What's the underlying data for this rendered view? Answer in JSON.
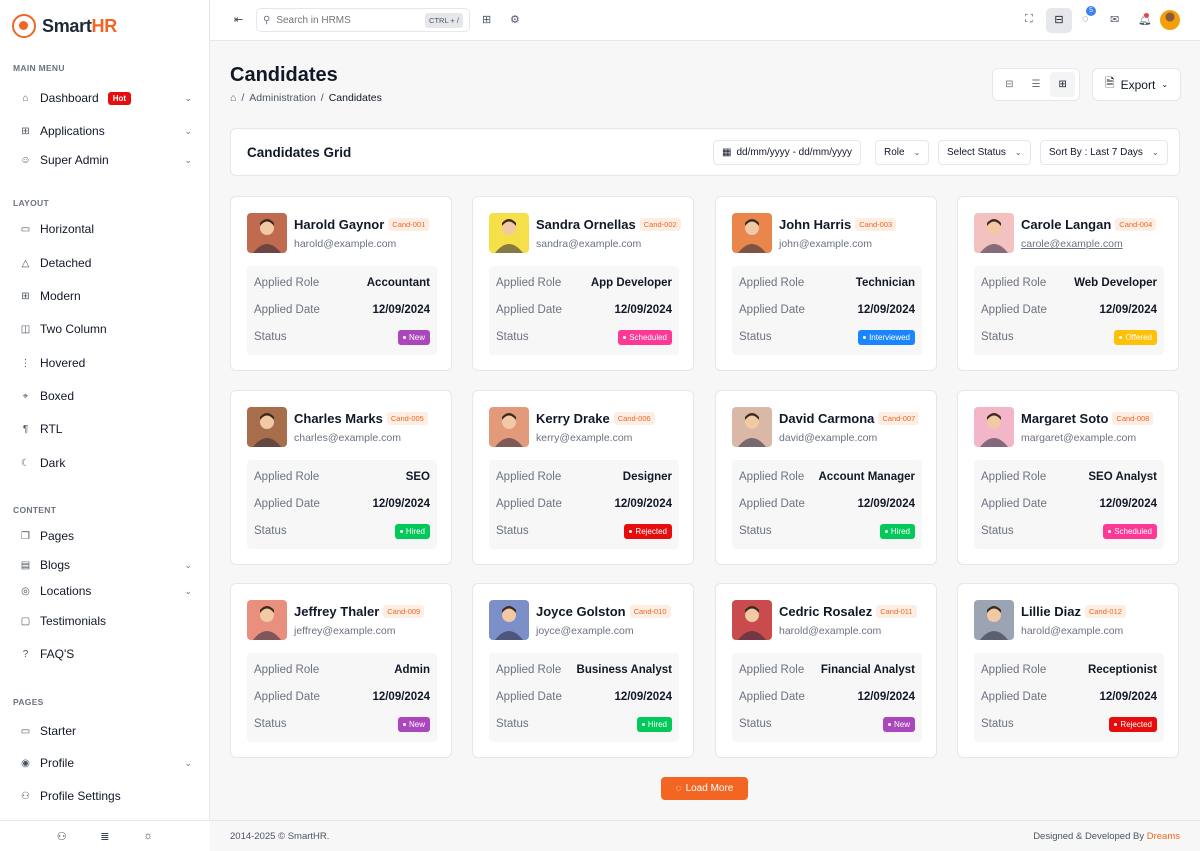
{
  "brand": {
    "name_a": "Smart",
    "name_b": "HR",
    "accent": "#f26522"
  },
  "sidebar": {
    "sections": [
      {
        "title": "MAIN MENU"
      },
      {
        "title": "LAYOUT"
      },
      {
        "title": "CONTENT"
      },
      {
        "title": "PAGES"
      }
    ],
    "main": [
      {
        "label": "Dashboard",
        "badge": "Hot",
        "icon": "home-icon"
      },
      {
        "label": "Applications",
        "icon": "apps-icon"
      },
      {
        "label": "Super Admin",
        "icon": "user-star-icon"
      }
    ],
    "layout": [
      {
        "label": "Horizontal",
        "icon": "layout-icon"
      },
      {
        "label": "Detached",
        "icon": "triangle-icon"
      },
      {
        "label": "Modern",
        "icon": "grid-icon"
      },
      {
        "label": "Two Column",
        "icon": "columns-icon"
      },
      {
        "label": "Hovered",
        "icon": "hover-icon"
      },
      {
        "label": "Boxed",
        "icon": "box-icon"
      },
      {
        "label": "RTL",
        "icon": "rtl-icon"
      },
      {
        "label": "Dark",
        "icon": "moon-icon"
      }
    ],
    "content": [
      {
        "label": "Pages",
        "icon": "pages-icon"
      },
      {
        "label": "Blogs",
        "icon": "blog-icon"
      },
      {
        "label": "Locations",
        "icon": "location-icon"
      },
      {
        "label": "Testimonials",
        "icon": "message-icon"
      },
      {
        "label": "FAQ'S",
        "icon": "question-icon"
      }
    ],
    "pages": [
      {
        "label": "Starter",
        "icon": "layout-icon"
      },
      {
        "label": "Profile",
        "icon": "user-circle-icon"
      },
      {
        "label": "Profile Settings",
        "icon": "user-cog-icon"
      }
    ]
  },
  "topbar": {
    "search_placeholder": "Search in HRMS",
    "shortcut": "CTRL + /",
    "chat_count": "5"
  },
  "page": {
    "title": "Candidates",
    "breadcrumb": [
      "Administration",
      "Candidates"
    ],
    "export": "Export",
    "grid_title": "Candidates Grid",
    "filters": {
      "date": "dd/mm/yyyy - dd/mm/yyyy",
      "role": "Role",
      "status": "Select Status",
      "sort": "Sort By : Last 7 Days"
    }
  },
  "labels": {
    "role": "Applied Role",
    "date": "Applied Date",
    "status": "Status"
  },
  "candidates": [
    {
      "name": "Harold Gaynor",
      "id": "Cand-001",
      "email": "harold@example.com",
      "role": "Accountant",
      "date": "12/09/2024",
      "status": "New"
    },
    {
      "name": "Sandra Ornellas",
      "id": "Cand-002",
      "email": "sandra@example.com",
      "role": "App Developer",
      "date": "12/09/2024",
      "status": "Scheduled"
    },
    {
      "name": "John Harris",
      "id": "Cand-003",
      "email": "john@example.com",
      "role": "Technician",
      "date": "12/09/2024",
      "status": "Interviewed"
    },
    {
      "name": "Carole Langan",
      "id": "Cand-004",
      "email": "carole@example.com",
      "role": "Web Developer",
      "date": "12/09/2024",
      "status": "Offered"
    },
    {
      "name": "Charles Marks",
      "id": "Cand-005",
      "email": "charles@example.com",
      "role": "SEO",
      "date": "12/09/2024",
      "status": "Hired"
    },
    {
      "name": "Kerry Drake",
      "id": "Cand-006",
      "email": "kerry@example.com",
      "role": "Designer",
      "date": "12/09/2024",
      "status": "Rejected"
    },
    {
      "name": "David Carmona",
      "id": "Cand-007",
      "email": "david@example.com",
      "role": "Account Manager",
      "date": "12/09/2024",
      "status": "Hired"
    },
    {
      "name": "Margaret Soto",
      "id": "Cand-008",
      "email": "margaret@example.com",
      "role": "SEO Analyst",
      "date": "12/09/2024",
      "status": "Scheduled"
    },
    {
      "name": "Jeffrey Thaler",
      "id": "Cand-009",
      "email": "jeffrey@example.com",
      "role": "Admin",
      "date": "12/09/2024",
      "status": "New"
    },
    {
      "name": "Joyce Golston",
      "id": "Cand-010",
      "email": "joyce@example.com",
      "role": "Business Analyst",
      "date": "12/09/2024",
      "status": "Hired"
    },
    {
      "name": "Cedric Rosalez",
      "id": "Cand-011",
      "email": "harold@example.com",
      "role": "Financial Analyst",
      "date": "12/09/2024",
      "status": "New"
    },
    {
      "name": "Lillie Diaz",
      "id": "Cand-012",
      "email": "harold@example.com",
      "role": "Receptionist",
      "date": "12/09/2024",
      "status": "Rejected"
    }
  ],
  "status_colors": {
    "New": "#ab47bc",
    "Scheduled": "#fd3995",
    "Interviewed": "#1b84ff",
    "Offered": "#ffc107",
    "Hired": "#03c95a",
    "Rejected": "#e70d0d"
  },
  "load_more": "Load More",
  "footer": {
    "copyright": "2014-2025 © SmartHR.",
    "credit": "Designed & Developed By",
    "credit_brand": "Dreams"
  }
}
